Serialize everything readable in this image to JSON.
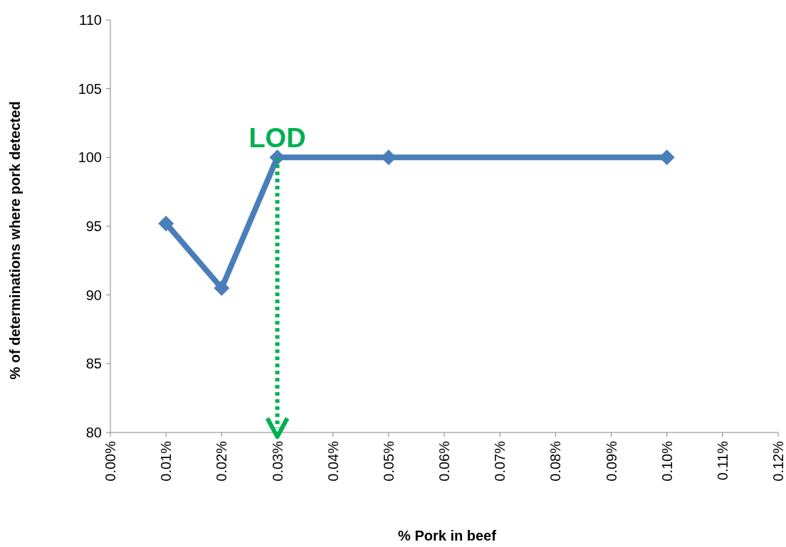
{
  "chart_data": {
    "type": "line",
    "xlabel": "% Pork in beef",
    "ylabel": "% of determinations where pork detected",
    "x": [
      0.01,
      0.02,
      0.03,
      0.05,
      0.1
    ],
    "series": [
      {
        "color": "#4a7ebb",
        "values": [
          95.2,
          90.5,
          100,
          100,
          100
        ]
      }
    ],
    "xlim": [
      0,
      0.12
    ],
    "ylim": [
      80,
      110
    ],
    "xticks": [
      {
        "value": 0,
        "label": "0.00%"
      },
      {
        "value": 0.01,
        "label": "0.01%"
      },
      {
        "value": 0.02,
        "label": "0.02%"
      },
      {
        "value": 0.03,
        "label": "0.03%"
      },
      {
        "value": 0.04,
        "label": "0.04%"
      },
      {
        "value": 0.05,
        "label": "0.05%"
      },
      {
        "value": 0.06,
        "label": "0.06%"
      },
      {
        "value": 0.07,
        "label": "0.07%"
      },
      {
        "value": 0.08,
        "label": "0.08%"
      },
      {
        "value": 0.09,
        "label": "0.09%"
      },
      {
        "value": 0.1,
        "label": "0.10%"
      },
      {
        "value": 0.11,
        "label": "0.11%"
      },
      {
        "value": 0.12,
        "label": "0.12%"
      }
    ],
    "yticks": [
      80,
      85,
      90,
      95,
      100,
      105,
      110
    ],
    "ref_lines": [
      {
        "axis": "x",
        "value": 0.03,
        "label": "LOD",
        "color": "#00b050",
        "line_style": "dotted"
      }
    ],
    "marker": "diamond",
    "grid": false
  }
}
